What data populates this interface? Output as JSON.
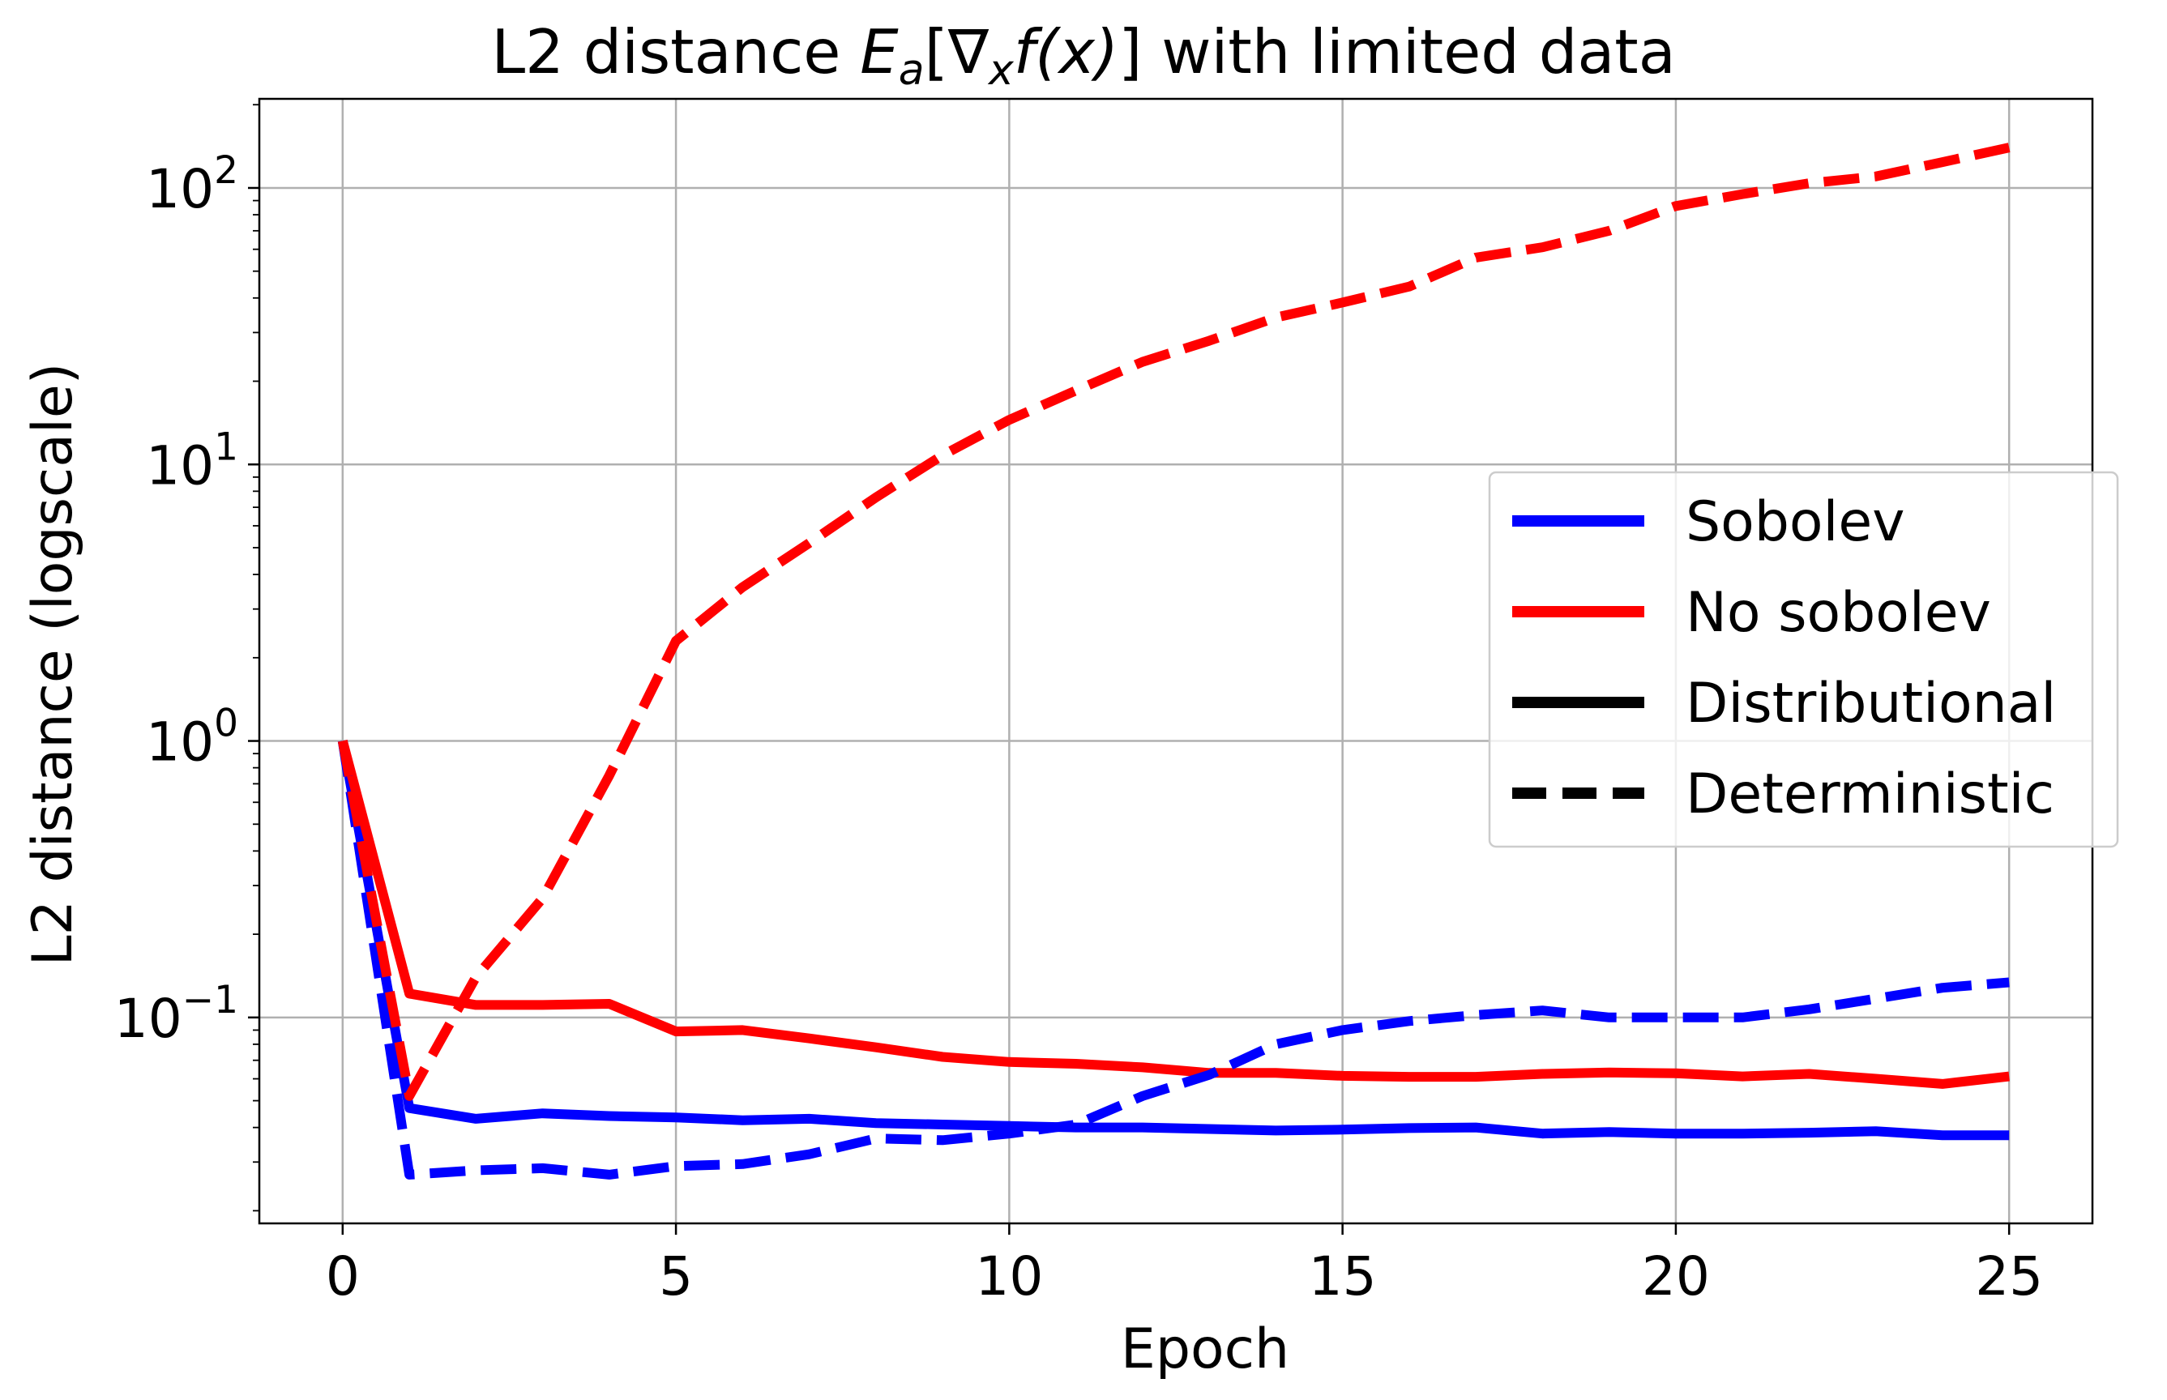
{
  "chart_data": {
    "type": "line",
    "title": {
      "prefix": "L2 distance ",
      "math_E": "E",
      "math_a": "a",
      "math_open": "[∇",
      "math_x": "x",
      "math_f": "f",
      "math_args": "(x)",
      "math_close": "]",
      "suffix": " with limited data"
    },
    "xlabel": "Epoch",
    "ylabel": "L2 distance (logscale)",
    "yscale": "log",
    "xlim": [
      -1.25,
      26.25
    ],
    "ylim": [
      0.018,
      210
    ],
    "grid": true,
    "x": [
      0,
      1,
      2,
      3,
      4,
      5,
      6,
      7,
      8,
      9,
      10,
      11,
      12,
      13,
      14,
      15,
      16,
      17,
      18,
      19,
      20,
      21,
      22,
      23,
      24,
      25
    ],
    "xticks": [
      {
        "value": 0,
        "label": "0"
      },
      {
        "value": 5,
        "label": "5"
      },
      {
        "value": 10,
        "label": "10"
      },
      {
        "value": 15,
        "label": "15"
      },
      {
        "value": 20,
        "label": "20"
      },
      {
        "value": 25,
        "label": "25"
      }
    ],
    "yticks": [
      {
        "value": 0.1,
        "base": "10",
        "exp": "−1"
      },
      {
        "value": 1,
        "base": "10",
        "exp": "0"
      },
      {
        "value": 10,
        "base": "10",
        "exp": "1"
      },
      {
        "value": 100,
        "base": "10",
        "exp": "2"
      }
    ],
    "series": [
      {
        "name": "Sobolev distributional",
        "color": "#0000ff",
        "style": "solid",
        "values": [
          1.0,
          0.047,
          0.043,
          0.045,
          0.044,
          0.0435,
          0.0425,
          0.043,
          0.0415,
          0.041,
          0.0405,
          0.04,
          0.04,
          0.0395,
          0.039,
          0.0393,
          0.0398,
          0.04,
          0.038,
          0.0385,
          0.038,
          0.038,
          0.0383,
          0.0388,
          0.0375,
          0.0375
        ]
      },
      {
        "name": "No sobolev distributional",
        "color": "#ff0000",
        "style": "solid",
        "values": [
          1.0,
          0.122,
          0.111,
          0.111,
          0.112,
          0.089,
          0.09,
          0.084,
          0.078,
          0.072,
          0.069,
          0.068,
          0.066,
          0.063,
          0.063,
          0.0615,
          0.061,
          0.061,
          0.0625,
          0.0632,
          0.0628,
          0.0612,
          0.0625,
          0.06,
          0.0575,
          0.0612
        ]
      },
      {
        "name": "Sobolev deterministic",
        "color": "#0000ff",
        "style": "dashed",
        "values": [
          1.0,
          0.027,
          0.028,
          0.0285,
          0.027,
          0.029,
          0.0295,
          0.032,
          0.0365,
          0.036,
          0.038,
          0.041,
          0.052,
          0.062,
          0.08,
          0.09,
          0.097,
          0.102,
          0.106,
          0.1,
          0.1,
          0.1,
          0.107,
          0.117,
          0.128,
          0.134
        ]
      },
      {
        "name": "No sobolev deterministic",
        "color": "#ff0000",
        "style": "dashed",
        "values": [
          1.0,
          0.052,
          0.14,
          0.27,
          0.75,
          2.3,
          3.6,
          5.2,
          7.6,
          10.8,
          14.5,
          18.5,
          23.5,
          28.0,
          34.0,
          38.5,
          44.0,
          56.0,
          61.0,
          70.0,
          86.0,
          95.0,
          104.0,
          110.0,
          124.0,
          140.0
        ]
      }
    ],
    "legend": {
      "location": "center-right",
      "entries": [
        {
          "label": "Sobolev",
          "color": "#0000ff",
          "style": "solid"
        },
        {
          "label": "No sobolev",
          "color": "#ff0000",
          "style": "solid"
        },
        {
          "label": "Distributional",
          "color": "#000000",
          "style": "solid"
        },
        {
          "label": "Deterministic",
          "color": "#000000",
          "style": "dashed"
        }
      ]
    }
  }
}
